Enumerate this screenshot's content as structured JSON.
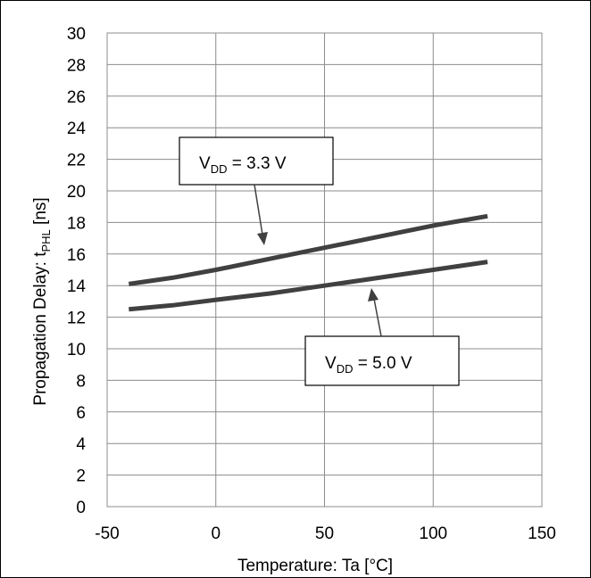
{
  "chart_data": {
    "type": "line",
    "xlabel": "Temperature: Ta [°C]",
    "ylabel": {
      "main": "Propagation Delay: t",
      "sub": "PHL",
      "suffix": " [ns]"
    },
    "xlim": [
      -50,
      150
    ],
    "ylim": [
      0,
      30
    ],
    "xticks": [
      "-50",
      "0",
      "50",
      "100",
      "150"
    ],
    "yticks": [
      "0",
      "2",
      "4",
      "6",
      "8",
      "10",
      "12",
      "14",
      "16",
      "18",
      "20",
      "22",
      "24",
      "26",
      "28",
      "30"
    ],
    "grid": true,
    "series": [
      {
        "name": "VDD = 3.3 V",
        "color": "#404040",
        "x": [
          -40,
          -20,
          0,
          25,
          50,
          75,
          100,
          125
        ],
        "y": [
          14.1,
          14.5,
          15.0,
          15.7,
          16.4,
          17.1,
          17.8,
          18.4
        ]
      },
      {
        "name": "VDD = 5.0 V",
        "color": "#404040",
        "x": [
          -40,
          -20,
          0,
          25,
          50,
          75,
          100,
          125
        ],
        "y": [
          12.5,
          12.75,
          13.1,
          13.5,
          14.0,
          14.5,
          15.0,
          15.5
        ]
      }
    ],
    "annotations": [
      {
        "label": "V",
        "sub": "DD",
        "rest": " = 3.3 V"
      },
      {
        "label": "V",
        "sub": "DD",
        "rest": " = 5.0 V"
      }
    ]
  }
}
